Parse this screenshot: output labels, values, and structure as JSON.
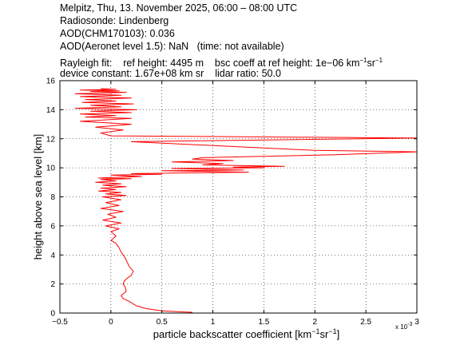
{
  "header": {
    "line1": "Melpitz, Thu, 13. November 2025, 06:00 – 08:00 UTC",
    "line2": "Radiosonde: Lindenberg",
    "line3": "AOD(CHM170103): 0.036",
    "line4_label": "AOD(Aeronet level 1.5): NaN",
    "line4_note": "(time: not available)",
    "rayleigh_label": "Rayleigh fit:",
    "ref_height": "ref height: 4495 m",
    "bsc_coeff_prefix": "bsc coeff at ref height: 1e−06 km",
    "device_constant": "device constant: 1.67e+08 km sr",
    "lidar_ratio": "lidar ratio: 50.0"
  },
  "chart_data": {
    "type": "line",
    "title": "",
    "xlabel": "particle backscatter coefficient [km",
    "ylabel": "height above sea level [km]",
    "x_multiplier": "x 10",
    "x_multiplier_exp": "-3",
    "xlim": [
      -0.5,
      3.0
    ],
    "ylim": [
      0,
      16
    ],
    "xticks": [
      -0.5,
      0,
      0.5,
      1,
      1.5,
      2,
      2.5,
      3
    ],
    "xtick_labels": [
      "−0.5",
      "0",
      "0.5",
      "1",
      "1.5",
      "2",
      "2.5",
      "3"
    ],
    "yticks": [
      0,
      2,
      4,
      6,
      8,
      10,
      12,
      14,
      16
    ],
    "ytick_labels": [
      "0",
      "2",
      "4",
      "6",
      "8",
      "10",
      "12",
      "14",
      "16"
    ],
    "grid": true,
    "line_color": "#ff0000",
    "series": [
      {
        "x": [
          0.8,
          0.5,
          0.35,
          0.25,
          0.18,
          0.12,
          0.1,
          0.15,
          0.14,
          0.12,
          0.13,
          0.16,
          0.2,
          0.22,
          0.18,
          0.16,
          0.14,
          0.12,
          0.1,
          0.08,
          0.05,
          0.0,
          0.05,
          0.0,
          0.08,
          -0.05,
          0.1,
          -0.08,
          0.05,
          -0.03,
          0.12,
          -0.1,
          0.08,
          -0.05,
          0.1,
          -0.08,
          0.15,
          -0.05,
          0.1,
          -0.12,
          0.05,
          -0.1,
          0.15,
          -0.08,
          0.1,
          -0.15,
          0.05,
          -0.1,
          0.2,
          -0.12,
          0.3,
          0.0,
          0.5,
          0.2,
          1.35,
          0.5,
          1.3,
          0.6,
          1.5,
          1.2,
          1.7,
          0.9,
          1.1,
          0.6,
          1.2,
          0.8,
          0.9,
          2.2,
          3.0,
          2.0,
          0.2,
          3.0,
          0.0,
          -0.1,
          0.12,
          -0.15,
          0.2,
          -0.3,
          0.2,
          -0.25,
          0.05,
          -0.3,
          0.2,
          -0.2,
          0.25,
          -0.35,
          0.1,
          -0.2,
          0.22,
          -0.28,
          0.05,
          -0.25,
          0.2,
          -0.3,
          0.1,
          -0.35,
          0.15,
          -0.2,
          0.08,
          -0.3,
          0.05,
          -0.1
        ],
        "y": [
          0.05,
          0.15,
          0.3,
          0.5,
          0.8,
          1.0,
          1.2,
          1.5,
          1.8,
          2.0,
          2.2,
          2.4,
          2.6,
          2.9,
          3.2,
          3.5,
          3.8,
          4.0,
          4.2,
          4.5,
          4.8,
          5.0,
          5.3,
          5.6,
          5.8,
          6.0,
          6.2,
          6.4,
          6.6,
          6.8,
          7.0,
          7.2,
          7.4,
          7.6,
          7.8,
          8.0,
          8.1,
          8.2,
          8.3,
          8.4,
          8.5,
          8.6,
          8.7,
          8.8,
          8.9,
          9.0,
          9.1,
          9.2,
          9.25,
          9.3,
          9.4,
          9.5,
          9.55,
          9.6,
          9.7,
          9.8,
          9.85,
          9.95,
          10.0,
          10.05,
          10.1,
          10.2,
          10.3,
          10.4,
          10.5,
          10.6,
          10.7,
          10.9,
          11.1,
          11.2,
          11.8,
          12.05,
          12.2,
          12.4,
          12.6,
          12.8,
          13.0,
          13.2,
          13.4,
          13.5,
          13.6,
          13.7,
          13.8,
          13.9,
          14.0,
          14.1,
          14.2,
          14.3,
          14.4,
          14.5,
          14.6,
          14.7,
          14.8,
          14.9,
          15.0,
          15.1,
          15.2,
          15.25,
          15.3,
          15.35,
          15.4,
          15.45
        ]
      }
    ]
  }
}
